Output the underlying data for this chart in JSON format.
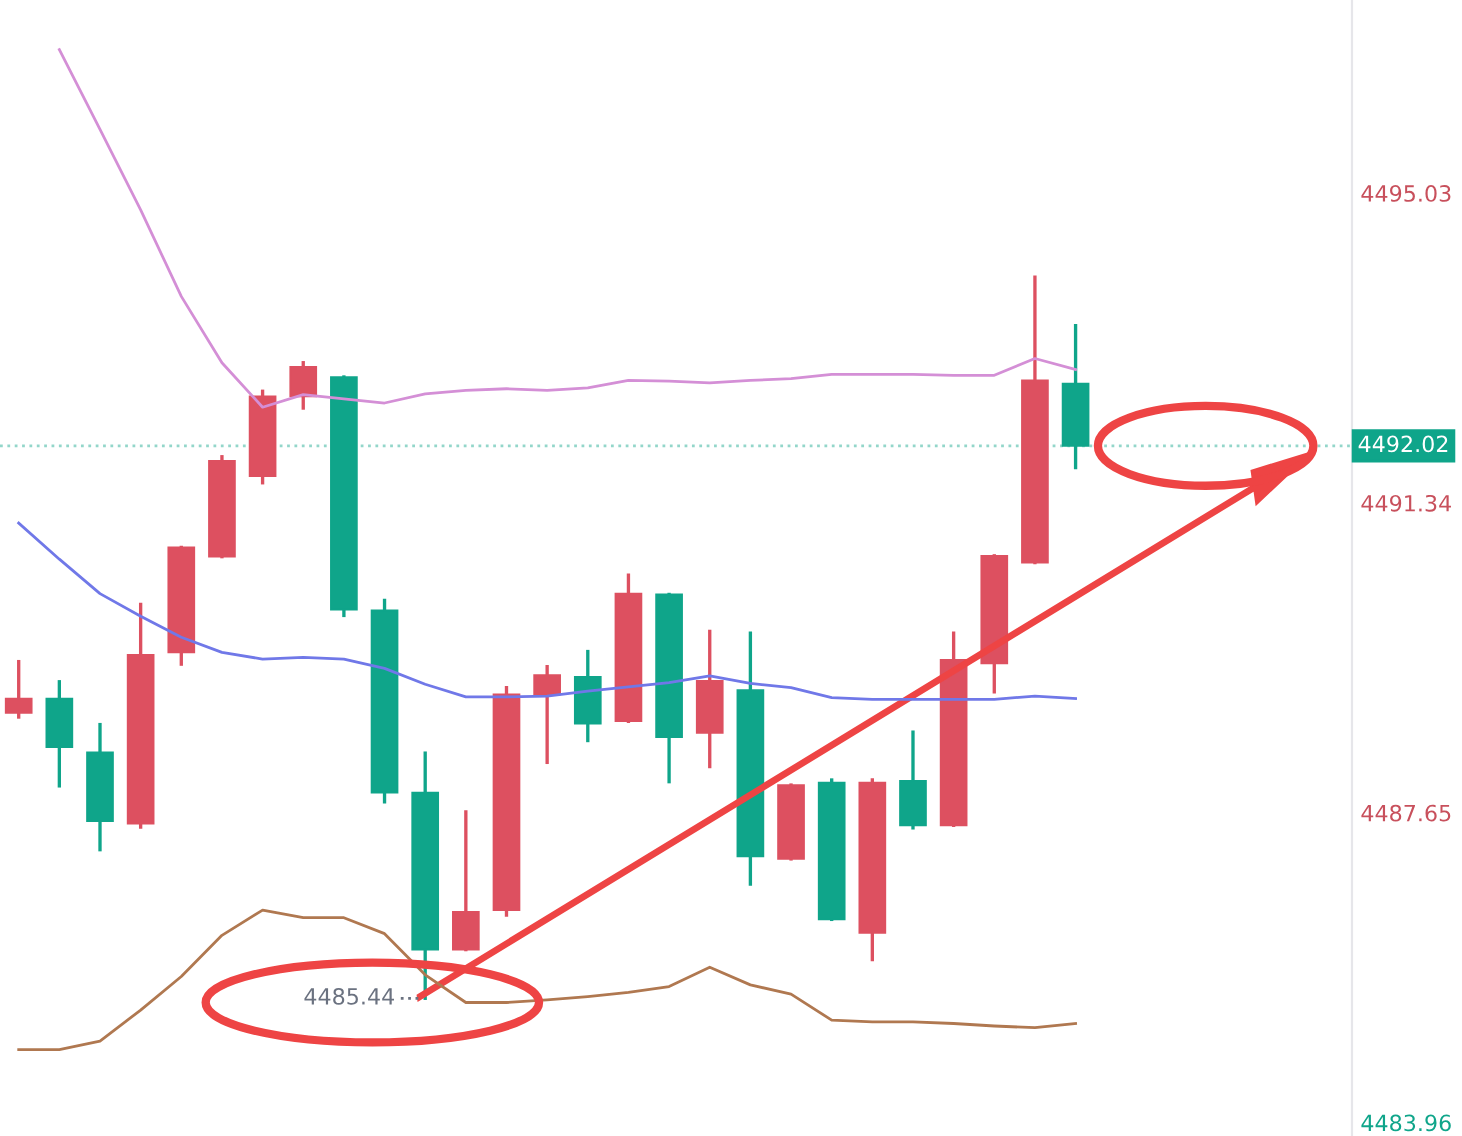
{
  "chart_data": {
    "type": "candlestick",
    "categories": [
      null,
      null,
      null,
      null,
      null,
      null,
      null,
      null,
      null,
      null,
      null,
      null,
      null,
      null,
      null,
      null,
      null,
      null,
      null,
      null,
      null,
      null,
      null,
      null,
      null,
      null,
      null
    ],
    "ohlc": [
      [
        4488.84,
        4489.45,
        4488.79,
        4489.01
      ],
      [
        4489.01,
        4489.21,
        4487.97,
        4488.43
      ],
      [
        4488.37,
        4488.7,
        4487.21,
        4487.55
      ],
      [
        4487.52,
        4490.13,
        4487.48,
        4489.53
      ],
      [
        4489.56,
        4490.81,
        4489.42,
        4490.81
      ],
      [
        4490.7,
        4491.89,
        4490.7,
        4491.84
      ],
      [
        4491.66,
        4492.67,
        4491.58,
        4492.61
      ],
      [
        4492.61,
        4493.01,
        4492.47,
        4492.96
      ],
      [
        4492.84,
        4492.84,
        4490.0,
        4490.07
      ],
      [
        4490.06,
        4490.18,
        4487.78,
        4487.89
      ],
      [
        4487.89,
        4488.36,
        4485.44,
        4486.02
      ],
      [
        4486.02,
        4487.66,
        4486.02,
        4486.47
      ],
      [
        4486.49,
        4489.14,
        4486.43,
        4489.06
      ],
      [
        4489.06,
        4489.39,
        4488.25,
        4489.29
      ],
      [
        4489.27,
        4489.57,
        4488.51,
        4488.71
      ],
      [
        4488.74,
        4490.48,
        4488.74,
        4490.26
      ],
      [
        4490.25,
        4490.25,
        4488.02,
        4488.55
      ],
      [
        4488.6,
        4489.81,
        4488.2,
        4489.22
      ],
      [
        4489.11,
        4489.79,
        4486.8,
        4487.13
      ],
      [
        4487.1,
        4487.98,
        4487.1,
        4487.98
      ],
      [
        4488.01,
        4488.04,
        4486.38,
        4486.38
      ],
      [
        4486.22,
        4488.04,
        4485.9,
        4488.01
      ],
      [
        4488.03,
        4488.61,
        4487.47,
        4487.5
      ],
      [
        4487.5,
        4489.79,
        4487.5,
        4489.47
      ],
      [
        4489.43,
        4490.71,
        4489.09,
        4490.71
      ],
      [
        4490.63,
        4494.03,
        4490.63,
        4492.8
      ],
      [
        4492.76,
        4493.45,
        4491.76,
        4492.02
      ]
    ],
    "colors": [
      "#dd5060",
      "#0fa58a",
      "#0fa58a",
      "#dd5060",
      "#dd5060",
      "#dd5060",
      "#dd5060",
      "#dd5060",
      "#0fa58a",
      "#0fa58a",
      "#0fa58a",
      "#dd5060",
      "#dd5060",
      "#dd5060",
      "#0fa58a",
      "#dd5060",
      "#0fa58a",
      "#dd5060",
      "#0fa58a",
      "#dd5060",
      "#0fa58a",
      "#dd5060",
      "#0fa58a",
      "#dd5060",
      "#dd5060",
      "#dd5060",
      "#0fa58a"
    ],
    "series": [
      {
        "type": "line",
        "color": "#d48fd6",
        "values": [
          null,
          4496.74,
          4495.79,
          4494.83,
          4493.8,
          4493.01,
          4492.48,
          4492.63,
          4492.58,
          4492.53,
          4492.64,
          4492.68,
          4492.7,
          4492.68,
          4492.71,
          4492.8,
          4492.79,
          4492.77,
          4492.8,
          4492.82,
          4492.87,
          4492.87,
          4492.87,
          4492.86,
          4492.86,
          4493.06,
          4492.93
        ]
      },
      {
        "type": "line",
        "color": "#7078e8",
        "values": [
          4491.1,
          4490.67,
          4490.26,
          4489.99,
          4489.74,
          4489.56,
          4489.48,
          4489.5,
          4489.48,
          4489.37,
          4489.18,
          4489.03,
          4489.03,
          4489.04,
          4489.1,
          4489.15,
          4489.2,
          4489.28,
          4489.19,
          4489.14,
          4489.02,
          4489.0,
          4489.0,
          4489.0,
          4489.0,
          4489.04,
          4489.01
        ]
      },
      {
        "type": "line",
        "color": "#b07850",
        "values": [
          4484.83,
          4484.83,
          4484.93,
          4485.3,
          4485.7,
          4486.19,
          4486.49,
          4486.4,
          4486.4,
          4486.21,
          4485.72,
          4485.39,
          4485.39,
          4485.42,
          4485.46,
          4485.51,
          4485.58,
          4485.81,
          4485.6,
          4485.49,
          4485.18,
          4485.16,
          4485.16,
          4485.14,
          4485.11,
          4485.09,
          4485.14
        ]
      }
    ],
    "ylim": [
      4483.8,
      4497.33
    ],
    "yticks": [
      4495.03,
      4491.34,
      4487.65,
      4483.96
    ],
    "ref_lines": [
      {
        "axis": "y",
        "value": 4492.02,
        "label": "4492.02",
        "color": "#0fa58a",
        "line_style": "dotted"
      }
    ],
    "annotations": [
      "4485.44"
    ],
    "tick_labels": "y"
  }
}
